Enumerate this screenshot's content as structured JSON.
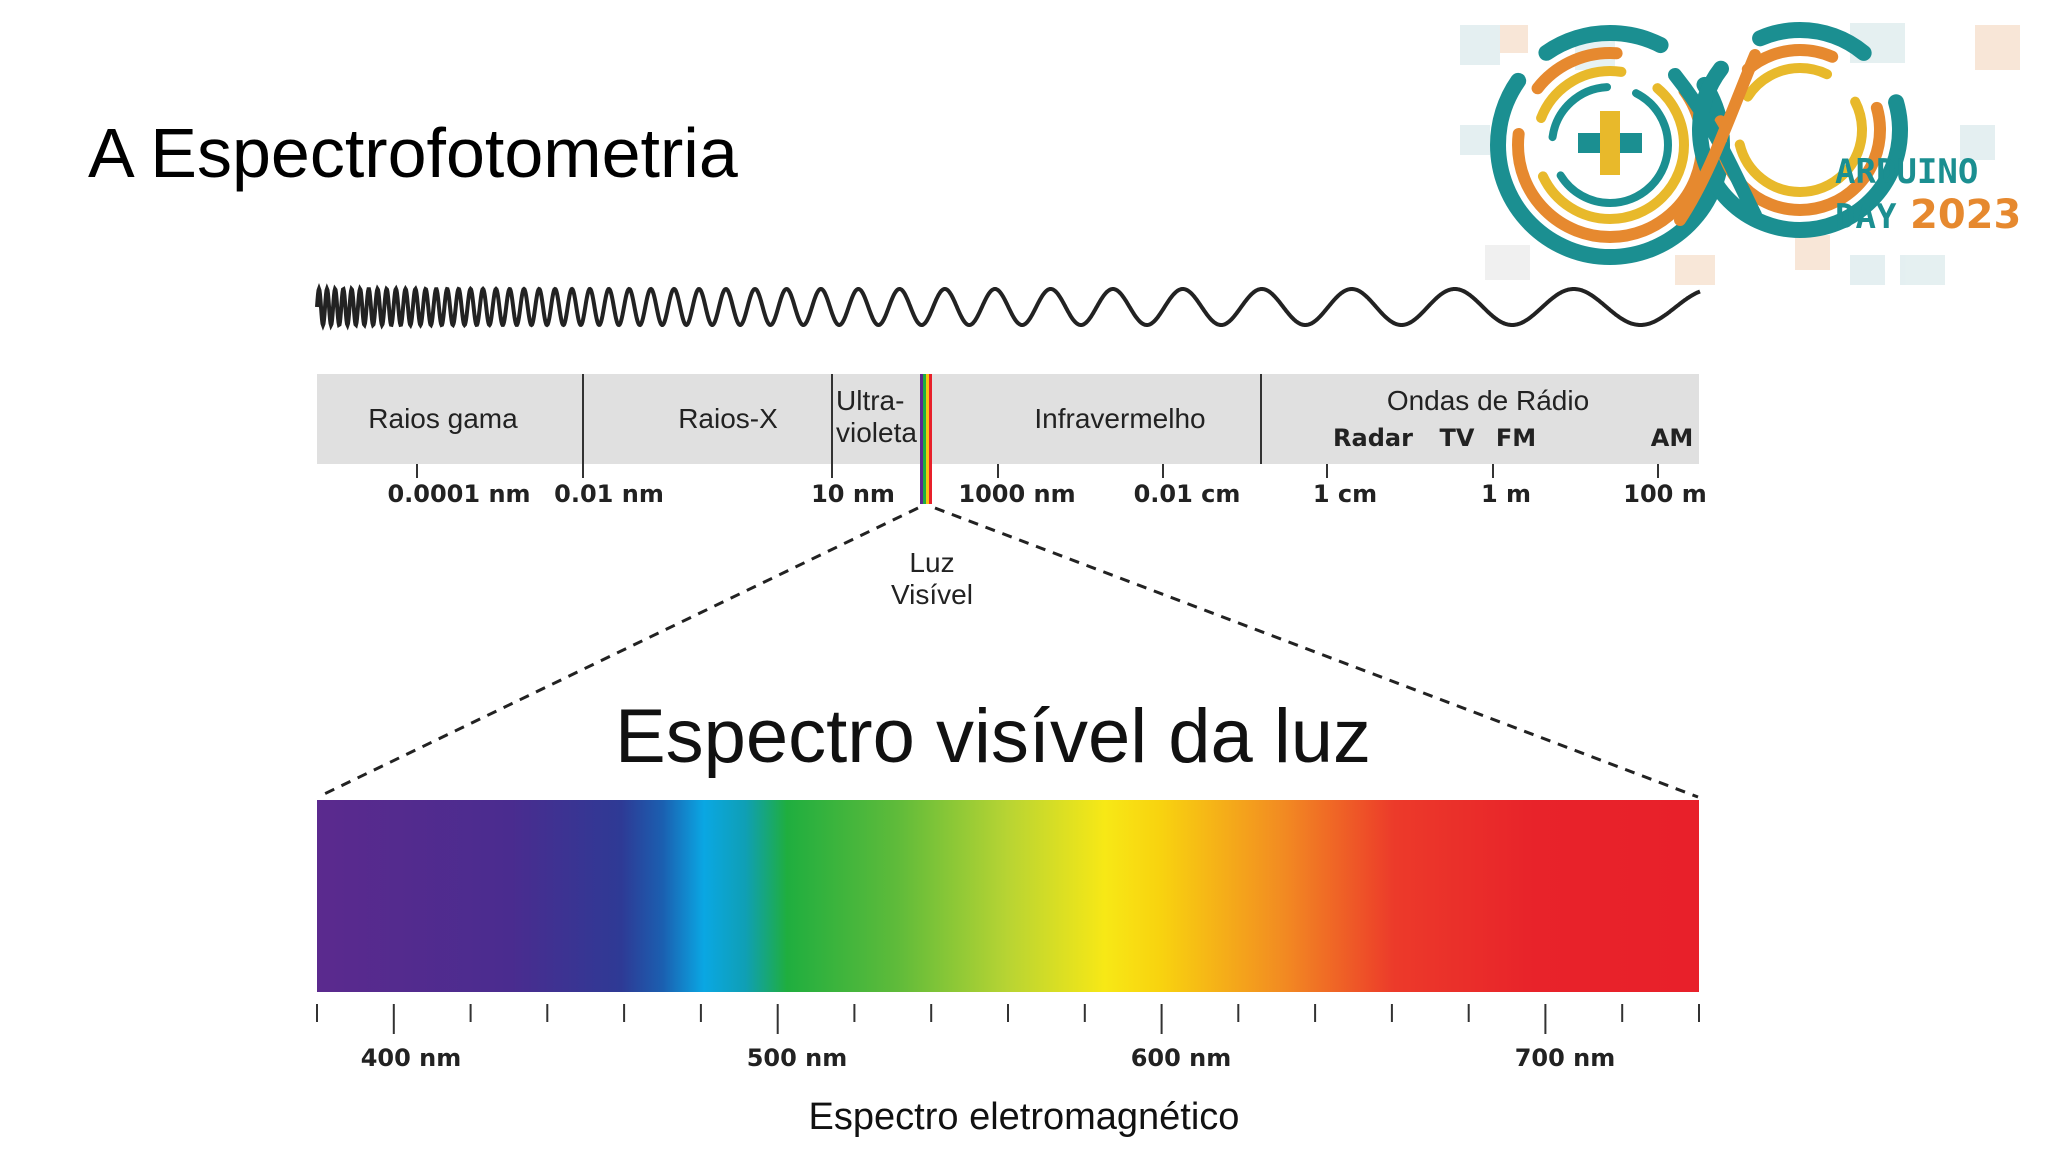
{
  "slide": {
    "title": "A Espectrofotometria",
    "caption": "Espectro eletromagnético"
  },
  "logo": {
    "line1": "ARDUINO",
    "line2a": "DAY",
    "line2b": "2023",
    "colors": {
      "teal": "#1b8f91",
      "orange": "#e6892f",
      "yellow": "#e8b92b",
      "bg_tiles": "#cfe3e6"
    }
  },
  "spectrum": {
    "bands": [
      {
        "label": "Raios gama"
      },
      {
        "label": "Raios-X"
      },
      {
        "label": "Ultra-",
        "label2": "violeta"
      },
      {
        "label": "Infravermelho"
      },
      {
        "label": "Ondas de Rádio"
      }
    ],
    "radio_sub": [
      "Radar",
      "TV",
      "FM",
      "AM"
    ],
    "ticks": [
      "0.0001 nm",
      "0.01 nm",
      "10 nm",
      "1000 nm",
      "0.01 cm",
      "1 cm",
      "1 m",
      "100 m"
    ],
    "visible_label": [
      "Luz",
      "Visível"
    ],
    "visible_title": "Espectro visível da luz",
    "nm_ticks": [
      "400 nm",
      "500 nm",
      "600 nm",
      "700 nm"
    ],
    "band_bg": "#e0e0e0"
  }
}
